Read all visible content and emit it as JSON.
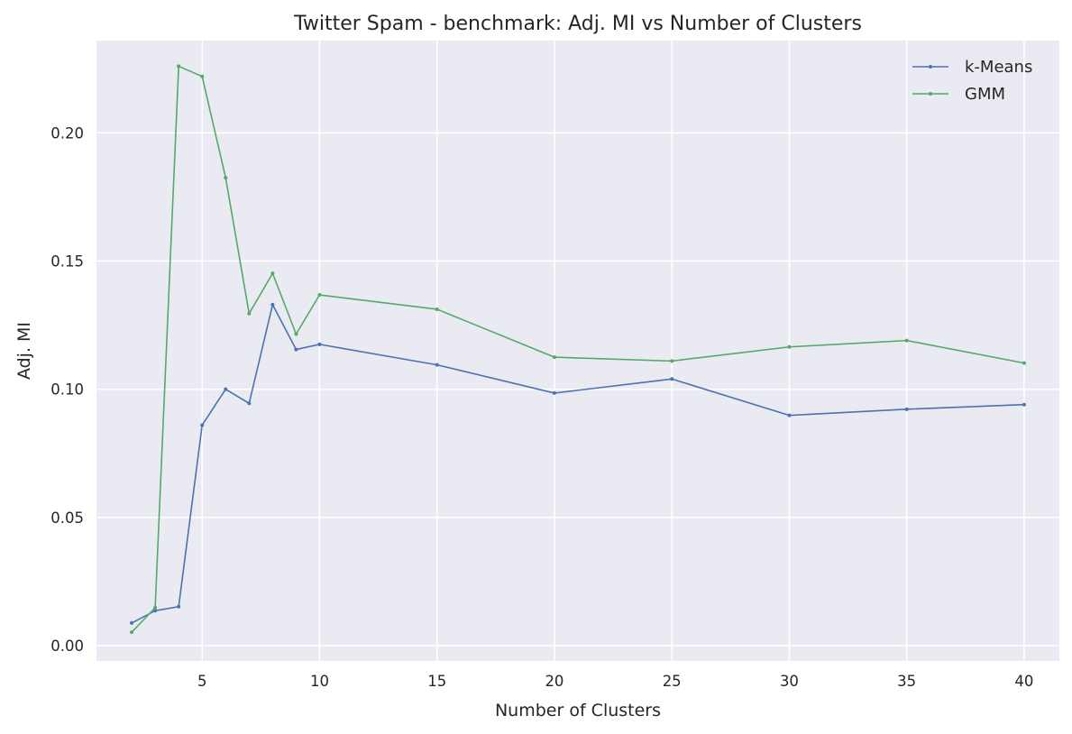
{
  "chart_data": {
    "type": "line",
    "title": "Twitter Spam - benchmark: Adj. MI vs Number of Clusters",
    "xlabel": "Number of Clusters",
    "ylabel": "Adj. MI",
    "xlim": [
      0.5,
      41.5
    ],
    "ylim": [
      -0.006,
      0.236
    ],
    "x_ticks": [
      5,
      10,
      15,
      20,
      25,
      30,
      35,
      40
    ],
    "y_ticks": [
      0.0,
      0.05,
      0.1,
      0.15,
      0.2
    ],
    "y_tick_labels": [
      "0.00",
      "0.05",
      "0.10",
      "0.15",
      "0.20"
    ],
    "x_tick_labels": [
      "5",
      "10",
      "15",
      "20",
      "25",
      "30",
      "35",
      "40"
    ],
    "grid": true,
    "legend_position": "top-right",
    "background_color": "#eaeaf2",
    "grid_color": "#ffffff",
    "x": [
      2,
      3,
      4,
      5,
      6,
      7,
      8,
      9,
      10,
      15,
      20,
      25,
      30,
      35,
      40
    ],
    "series": [
      {
        "name": "k-Means",
        "color": "#4c72b0",
        "values": [
          0.0088,
          0.0136,
          0.0152,
          0.086,
          0.1,
          0.0945,
          0.133,
          0.1155,
          0.1175,
          0.1095,
          0.0985,
          0.104,
          0.0898,
          0.0922,
          0.094
        ]
      },
      {
        "name": "GMM",
        "color": "#55a868",
        "values": [
          0.0052,
          0.0148,
          0.226,
          0.222,
          0.1825,
          0.1295,
          0.1452,
          0.1215,
          0.1368,
          0.1312,
          0.1125,
          0.111,
          0.1165,
          0.119,
          0.1102
        ]
      }
    ]
  }
}
